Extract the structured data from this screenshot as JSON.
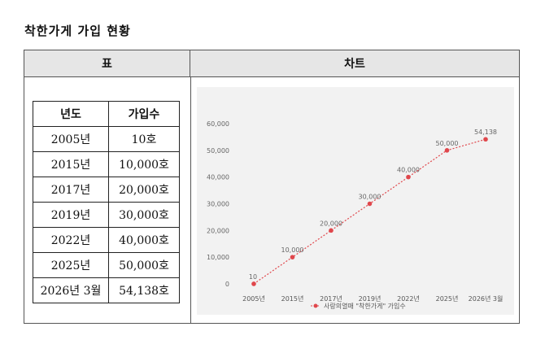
{
  "document": {
    "title": "착한가게 가입 현황"
  },
  "table_section": {
    "header": "표",
    "columns": [
      "년도",
      "가입수"
    ],
    "rows": [
      {
        "year": "2005년",
        "count": "10호"
      },
      {
        "year": "2015년",
        "count": "10,000호"
      },
      {
        "year": "2017년",
        "count": "20,000호"
      },
      {
        "year": "2019년",
        "count": "30,000호"
      },
      {
        "year": "2022년",
        "count": "40,000호"
      },
      {
        "year": "2025년",
        "count": "50,000호"
      },
      {
        "year": "2026년 3월",
        "count": "54,138호"
      }
    ]
  },
  "chart_section": {
    "header": "차트"
  },
  "chart_data": {
    "type": "line",
    "x": [
      "2005년",
      "2015년",
      "2017년",
      "2019년",
      "2022년",
      "2025년",
      "2026년 3월"
    ],
    "series": [
      {
        "name": "사랑의열매 \"착한가게\" 가입수",
        "values": [
          10,
          10000,
          20000,
          30000,
          40000,
          50000,
          54138
        ],
        "labels": [
          "10",
          "10,000",
          "20,000",
          "30,000",
          "40,000",
          "50,000",
          "54,138"
        ]
      }
    ],
    "yticks": [
      "0",
      "10,000",
      "20,000",
      "30,000",
      "40,000",
      "50,000",
      "60,000"
    ],
    "ylim": [
      0,
      60000
    ],
    "grid": false,
    "legend": "bottom",
    "line_style": "dotted",
    "color": "#e0474c"
  }
}
